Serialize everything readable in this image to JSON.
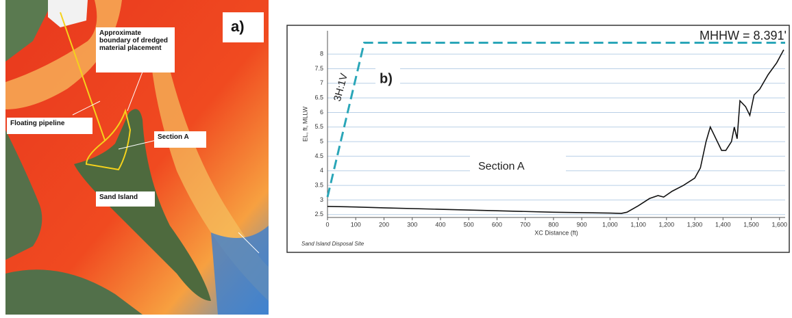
{
  "map": {
    "panel_label": "a)",
    "labels": [
      "Approximate boundary of dredged material placement",
      "Floating pipeline",
      "Section A",
      "Sand Island"
    ]
  },
  "chart_data": {
    "type": "line",
    "panel_label": "b)",
    "x_label": "XC Distance (ft)",
    "y_label": "EL, ft, MLLW",
    "footer": "Sand Island Disposal Site",
    "annotations": [
      "Section A",
      "3H:1V",
      "MHHW = 8.391'"
    ],
    "xlim": [
      0,
      1620
    ],
    "ylim": [
      2.4,
      8.8
    ],
    "xticks": [
      0,
      100,
      200,
      300,
      400,
      500,
      600,
      700,
      800,
      900,
      {
        "value": 1000,
        "label": "1,000"
      },
      {
        "value": 1100,
        "label": "1,100"
      },
      {
        "value": 1200,
        "label": "1,200"
      },
      {
        "value": 1300,
        "label": "1,300"
      },
      {
        "value": 1400,
        "label": "1,400"
      },
      {
        "value": 1500,
        "label": "1,500"
      },
      {
        "value": 1600,
        "label": "1,600"
      }
    ],
    "yticks": [
      2.5,
      3,
      3.5,
      4,
      4.5,
      5,
      5.5,
      6,
      6.5,
      7,
      7.5,
      8
    ],
    "grid": true,
    "grid_color": "#b8cfe6",
    "series": [
      {
        "color": "#111111",
        "style": "solid",
        "x": [
          0,
          100,
          200,
          400,
          600,
          800,
          1000,
          1040,
          1060,
          1100,
          1140,
          1170,
          1190,
          1220,
          1260,
          1300,
          1320,
          1340,
          1355,
          1370,
          1380,
          1395,
          1410,
          1430,
          1440,
          1450,
          1460,
          1480,
          1495,
          1510,
          1530,
          1560,
          1590,
          1615
        ],
        "values": [
          2.78,
          2.76,
          2.73,
          2.68,
          2.63,
          2.58,
          2.55,
          2.54,
          2.58,
          2.8,
          3.05,
          3.15,
          3.1,
          3.3,
          3.5,
          3.75,
          4.1,
          5.0,
          5.5,
          5.2,
          5.0,
          4.7,
          4.7,
          5.0,
          5.5,
          5.1,
          6.4,
          6.2,
          5.9,
          6.6,
          6.8,
          7.3,
          7.7,
          8.15
        ]
      },
      {
        "color": "#2aa6b8",
        "style": "dashed",
        "x": [
          0,
          130,
          1620
        ],
        "values": [
          3.1,
          8.391,
          8.391
        ]
      }
    ]
  }
}
